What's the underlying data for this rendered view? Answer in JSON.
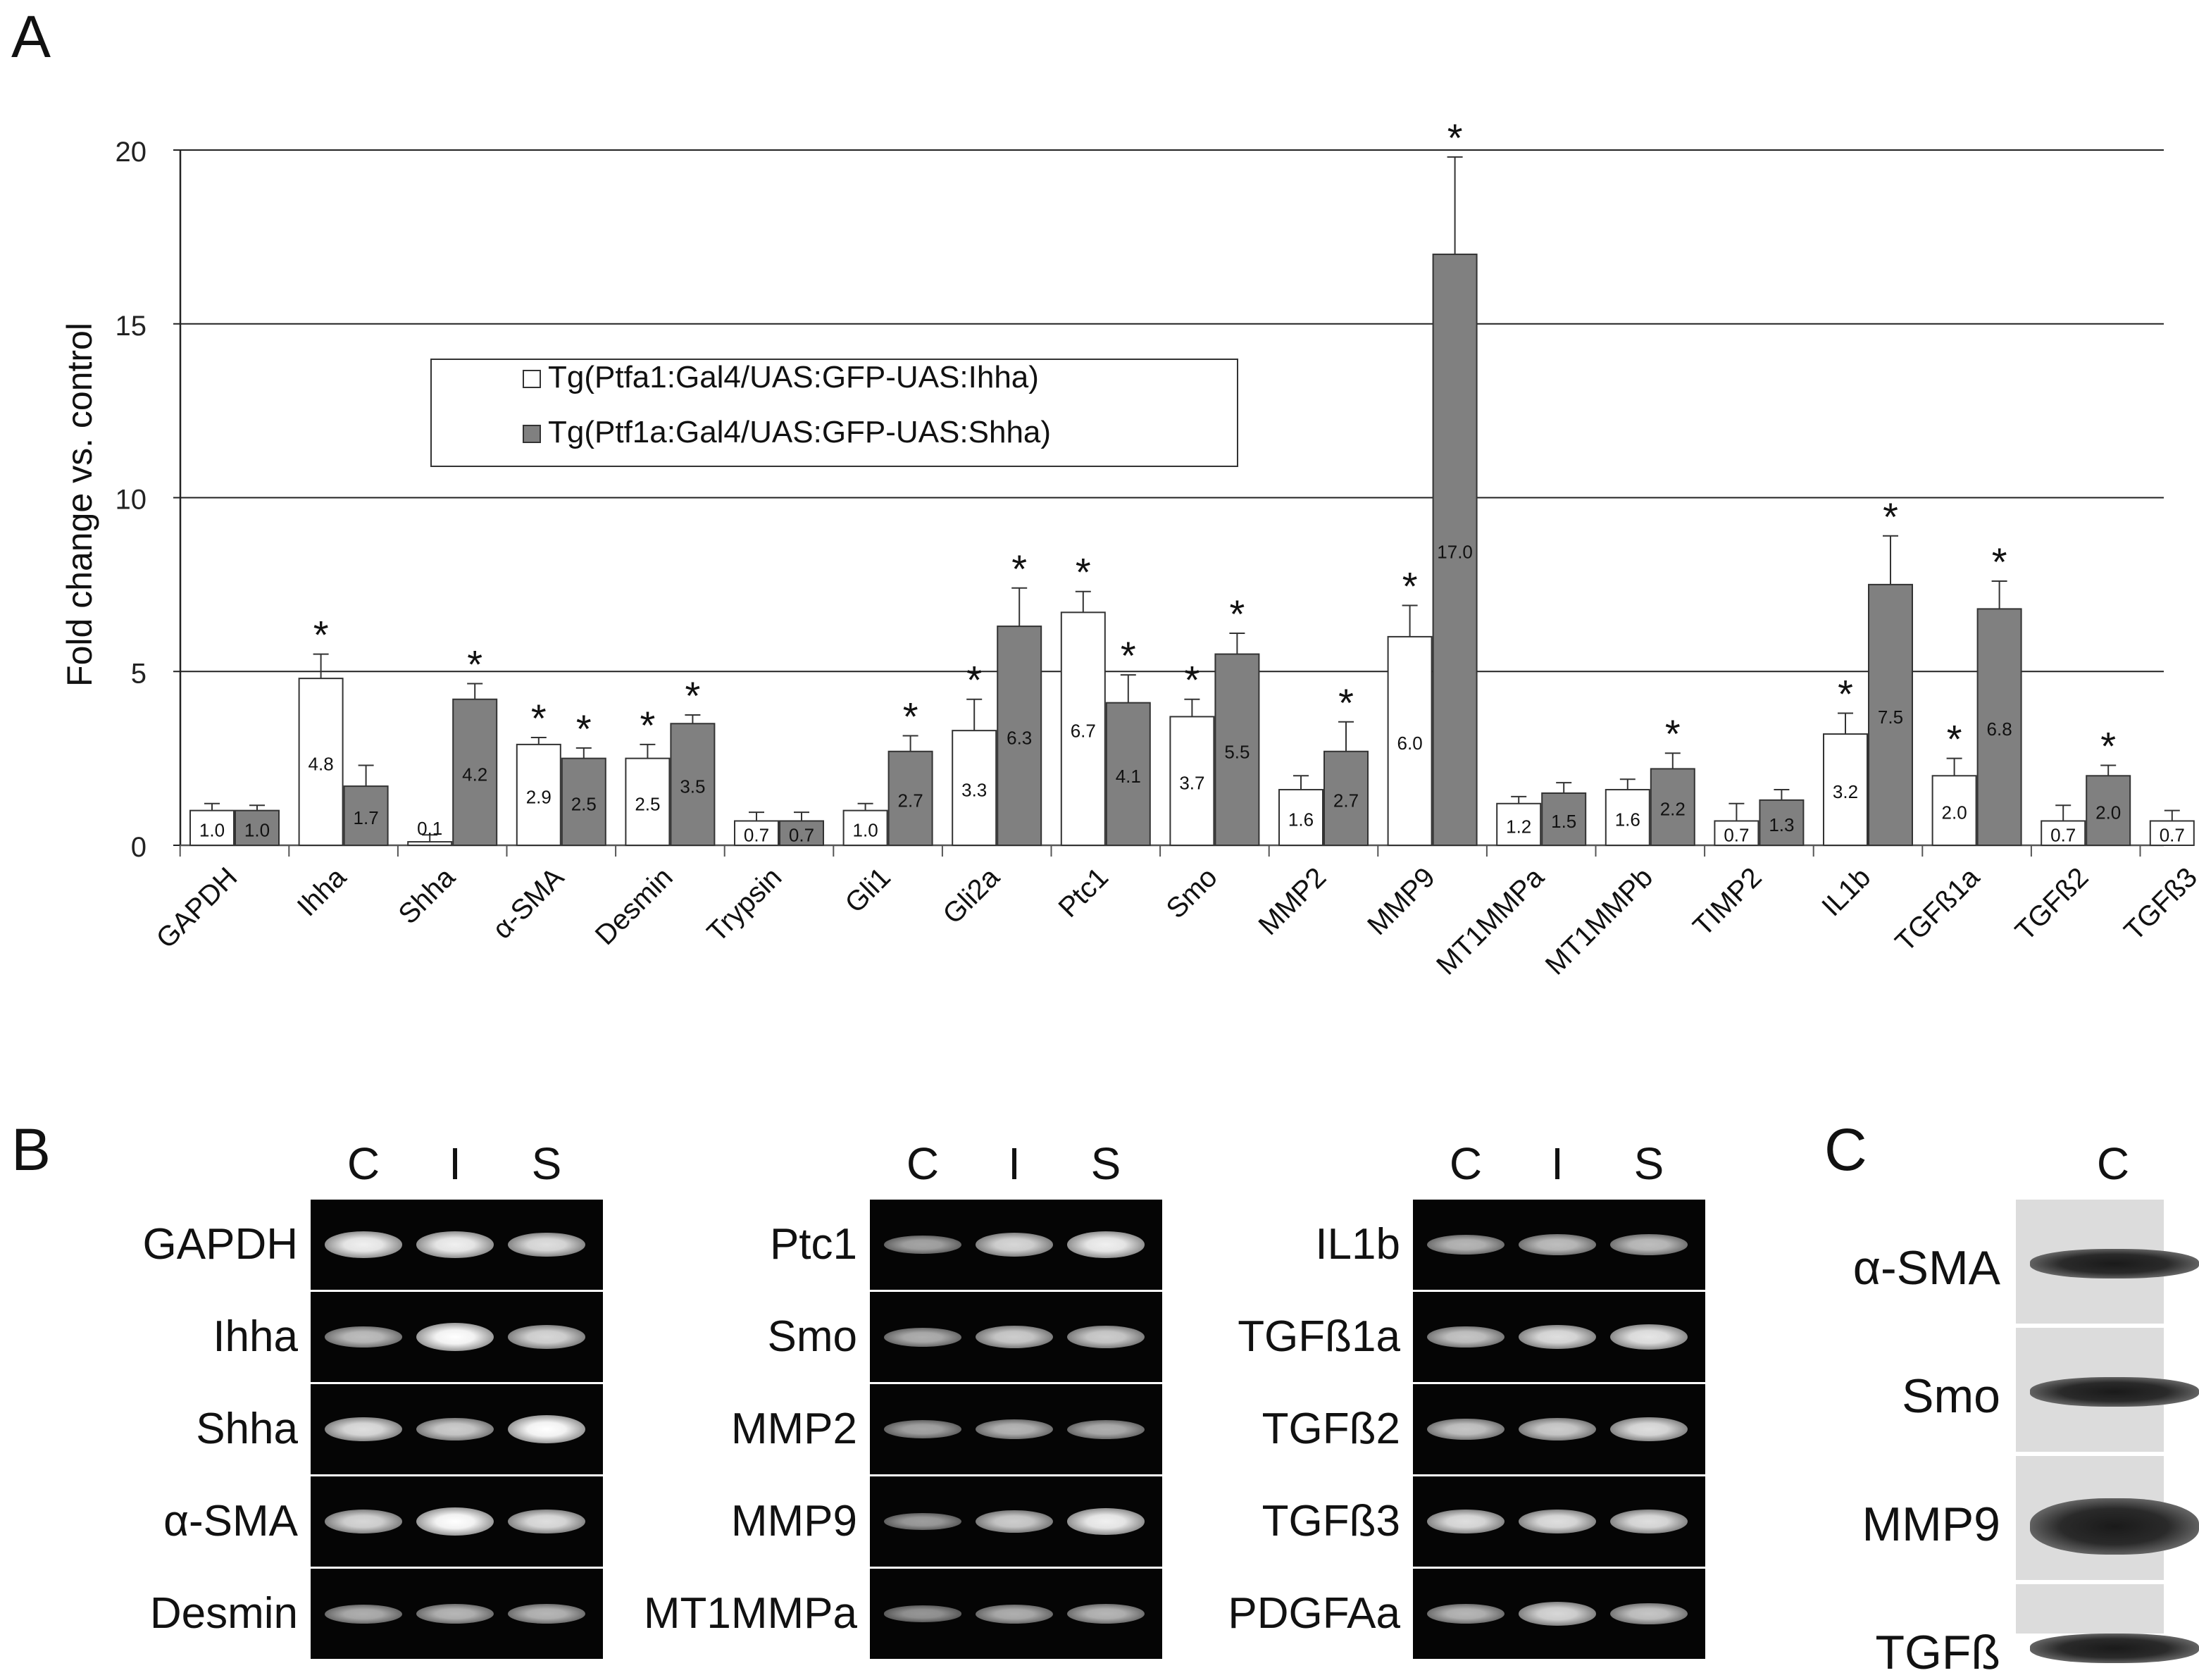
{
  "panels": {
    "a": "A",
    "b": "B",
    "c": "C"
  },
  "chart_data": {
    "type": "bar",
    "ylabel": "Fold change vs. control",
    "ylim": [
      0,
      20
    ],
    "yticks": [
      0,
      5,
      10,
      15,
      20
    ],
    "grid": true,
    "legend_position": "upper-left",
    "categories": [
      "GAPDH",
      "Ihha",
      "Shha",
      "α-SMA",
      "Desmin",
      "Trypsin",
      "Gli1",
      "Gli2a",
      "Ptc1",
      "Smo",
      "MMP2",
      "MMP9",
      "MT1MMPa",
      "MT1MMPb",
      "TIMP2",
      "IL1b",
      "TGFß1a",
      "TGFß2",
      "TGFß3"
    ],
    "series": [
      {
        "name": "Tg(Ptfa1:Gal4/UAS:GFP-UAS:Ihha)",
        "color": "#ffffff",
        "values": [
          1.0,
          4.8,
          0.1,
          2.9,
          2.5,
          0.7,
          1.0,
          3.3,
          6.7,
          3.7,
          1.6,
          6.0,
          1.2,
          1.6,
          0.7,
          3.2,
          2.0,
          0.7,
          0.7
        ],
        "errors": [
          0.2,
          0.7,
          0.2,
          0.2,
          0.4,
          0.25,
          0.2,
          0.9,
          0.6,
          0.5,
          0.4,
          0.9,
          0.2,
          0.3,
          0.5,
          0.6,
          0.5,
          0.45,
          0.3
        ],
        "significant": [
          false,
          true,
          false,
          true,
          true,
          false,
          false,
          true,
          true,
          true,
          false,
          true,
          false,
          false,
          false,
          true,
          true,
          false,
          false
        ]
      },
      {
        "name": "Tg(Ptf1a:Gal4/UAS:GFP-UAS:Shha)",
        "color": "#808080",
        "values": [
          1.0,
          1.7,
          4.2,
          2.5,
          3.5,
          0.7,
          2.7,
          6.3,
          4.1,
          5.5,
          2.7,
          17.0,
          1.5,
          2.2,
          1.3,
          7.5,
          6.8,
          2.0,
          null
        ],
        "errors": [
          0.15,
          0.6,
          0.45,
          0.3,
          0.25,
          0.25,
          0.45,
          1.1,
          0.8,
          0.6,
          0.85,
          2.8,
          0.3,
          0.45,
          0.3,
          1.4,
          0.8,
          0.3,
          null
        ],
        "significant": [
          false,
          false,
          true,
          true,
          true,
          false,
          true,
          true,
          true,
          true,
          true,
          true,
          false,
          true,
          false,
          true,
          true,
          true,
          false
        ]
      }
    ]
  },
  "gel_panel_b": {
    "lane_headers": [
      "C",
      "I",
      "S"
    ],
    "blocks": [
      {
        "labels": [
          "GAPDH",
          "Ihha",
          "Shha",
          "α-SMA",
          "Desmin"
        ],
        "intensity": [
          [
            0.9,
            0.9,
            0.8
          ],
          [
            0.6,
            1.0,
            0.75
          ],
          [
            0.8,
            0.7,
            1.0
          ],
          [
            0.75,
            1.0,
            0.8
          ],
          [
            0.5,
            0.55,
            0.55
          ]
        ]
      },
      {
        "labels": [
          "Ptc1",
          "Smo",
          "MMP2",
          "MMP9",
          "MT1MMPa"
        ],
        "intensity": [
          [
            0.45,
            0.75,
            0.9
          ],
          [
            0.5,
            0.7,
            0.7
          ],
          [
            0.45,
            0.55,
            0.5
          ],
          [
            0.4,
            0.7,
            0.9
          ],
          [
            0.35,
            0.5,
            0.55
          ]
        ]
      },
      {
        "labels": [
          "IL1b",
          "TGFß1a",
          "TGFß2",
          "TGFß3",
          "PDGFAa"
        ],
        "intensity": [
          [
            0.55,
            0.6,
            0.6
          ],
          [
            0.65,
            0.8,
            0.85
          ],
          [
            0.65,
            0.7,
            0.8
          ],
          [
            0.8,
            0.8,
            0.8
          ],
          [
            0.55,
            0.75,
            0.65
          ]
        ]
      }
    ]
  },
  "western_panel_c": {
    "lane_header": "C",
    "labels": [
      "α-SMA",
      "Smo",
      "MMP9",
      "TGFß"
    ]
  }
}
